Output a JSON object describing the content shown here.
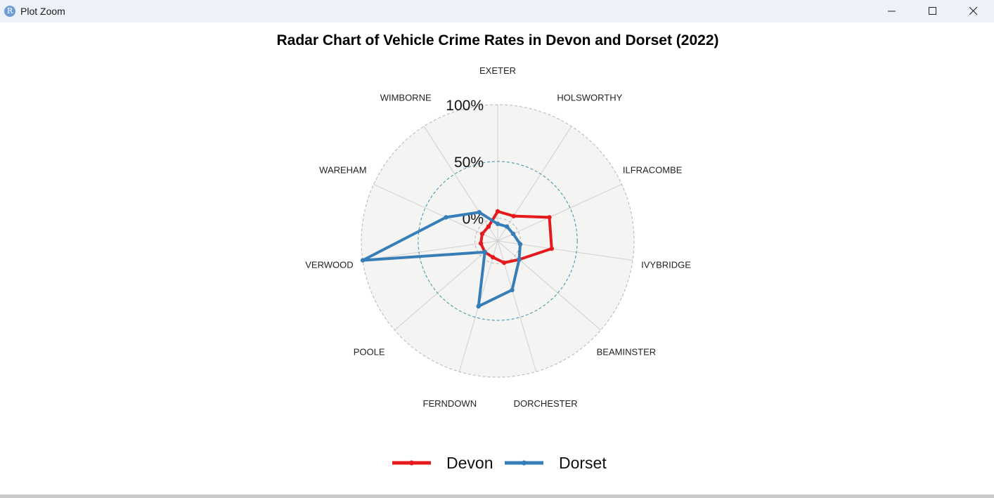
{
  "window": {
    "title": "Plot Zoom",
    "app_icon_letter": "R"
  },
  "chart_data": {
    "type": "radar",
    "title": "Radar Chart of Vehicle Crime Rates in Devon and Dorset (2022)",
    "axis_labels": [
      "EXETER",
      "HOLSWORTHY",
      "ILFRACOMBE",
      "IVYBRIDGE",
      "BEAMINSTER",
      "DORCHESTER",
      "FERNDOWN",
      "POOLE",
      "VERWOOD",
      "WAREHAM",
      "WIMBORNE"
    ],
    "grid_labels": [
      "0%",
      "50%",
      "100%"
    ],
    "ylim": [
      -0.2,
      1.0
    ],
    "grid_levels": [
      0,
      0.5,
      1.0
    ],
    "series": [
      {
        "name": "Devon",
        "color": "#e41a1c",
        "values": [
          0.06,
          0.06,
          0.3,
          0.28,
          0.05,
          0.0,
          -0.05,
          -0.05,
          -0.05,
          -0.05,
          -0.05
        ]
      },
      {
        "name": "Dorset",
        "color": "#377eb8",
        "values": [
          -0.05,
          -0.05,
          -0.05,
          0.0,
          0.05,
          0.25,
          0.4,
          -0.05,
          1.0,
          0.3,
          0.1
        ]
      }
    ],
    "legend": "bottom"
  }
}
